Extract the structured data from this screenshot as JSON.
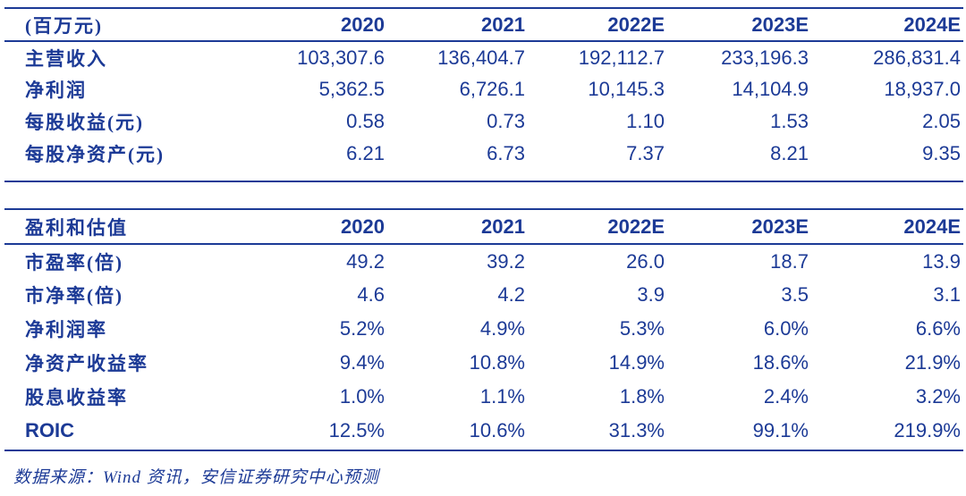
{
  "colors": {
    "text_navy": "#1c3a96",
    "border_navy": "#1c3a96",
    "background": "#ffffff"
  },
  "table1": {
    "unit_label": "(百万元)",
    "columns": [
      "2020",
      "2021",
      "2022E",
      "2023E",
      "2024E"
    ],
    "rows": [
      {
        "label": "主营收入",
        "values": [
          "103,307.6",
          "136,404.7",
          "192,112.7",
          "233,196.3",
          "286,831.4"
        ]
      },
      {
        "label": "净利润",
        "values": [
          "5,362.5",
          "6,726.1",
          "10,145.3",
          "14,104.9",
          "18,937.0"
        ]
      },
      {
        "label": "每股收益(元)",
        "values": [
          "0.58",
          "0.73",
          "1.10",
          "1.53",
          "2.05"
        ]
      },
      {
        "label": "每股净资产(元)",
        "values": [
          "6.21",
          "6.73",
          "7.37",
          "8.21",
          "9.35"
        ]
      }
    ]
  },
  "table2": {
    "title": "盈利和估值",
    "columns": [
      "2020",
      "2021",
      "2022E",
      "2023E",
      "2024E"
    ],
    "rows": [
      {
        "label": "市盈率(倍)",
        "values": [
          "49.2",
          "39.2",
          "26.0",
          "18.7",
          "13.9"
        ]
      },
      {
        "label": "市净率(倍)",
        "values": [
          "4.6",
          "4.2",
          "3.9",
          "3.5",
          "3.1"
        ]
      },
      {
        "label": "净利润率",
        "values": [
          "5.2%",
          "4.9%",
          "5.3%",
          "6.0%",
          "6.6%"
        ]
      },
      {
        "label": "净资产收益率",
        "values": [
          "9.4%",
          "10.8%",
          "14.9%",
          "18.6%",
          "21.9%"
        ]
      },
      {
        "label": "股息收益率",
        "values": [
          "1.0%",
          "1.1%",
          "1.8%",
          "2.4%",
          "3.2%"
        ]
      },
      {
        "label": "ROIC",
        "values": [
          "12.5%",
          "10.6%",
          "31.3%",
          "99.1%",
          "219.9%"
        ]
      }
    ]
  },
  "footer": {
    "source_note": "数据来源：Wind 资讯，安信证券研究中心预测"
  }
}
